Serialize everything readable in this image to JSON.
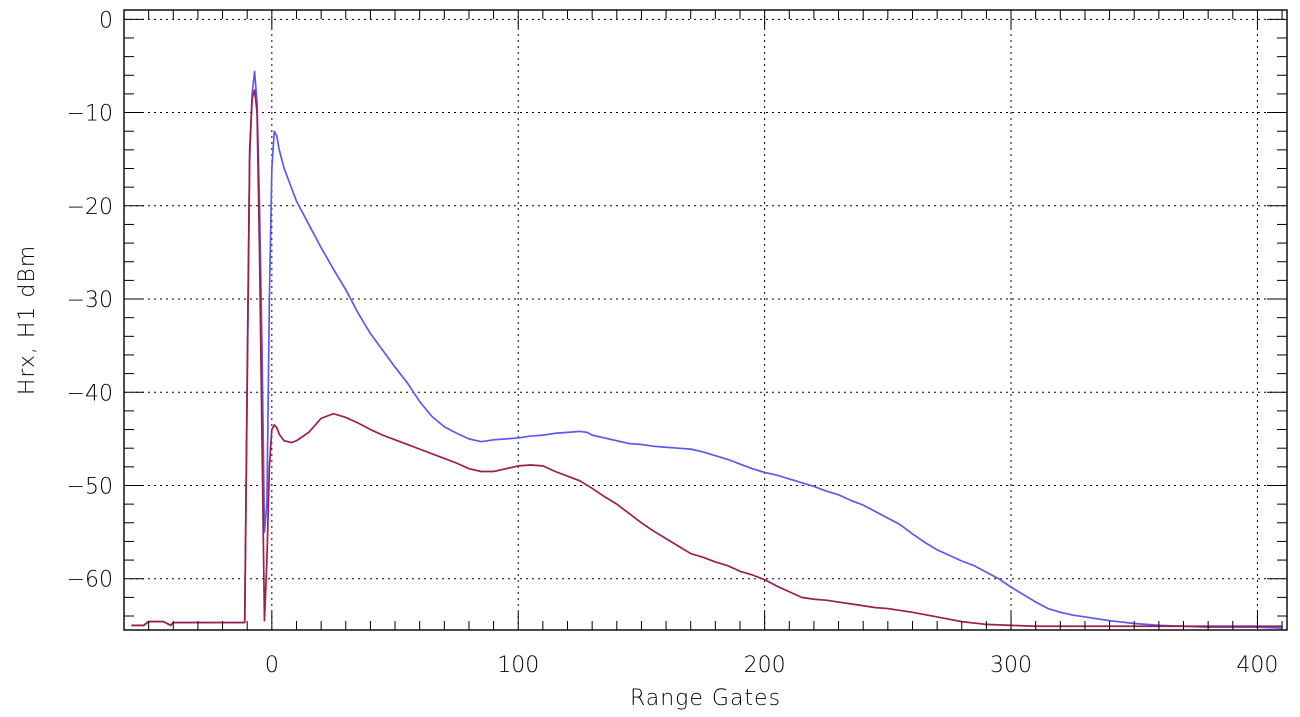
{
  "chart_data": {
    "type": "line",
    "title": "",
    "xlabel": "Range Gates",
    "ylabel": "Hrx, H1 dBm",
    "xlim": [
      -60,
      412
    ],
    "ylim": [
      -65.5,
      1
    ],
    "xticks": [
      0,
      100,
      200,
      300,
      400
    ],
    "xtick_labels": [
      "0",
      "100",
      "200",
      "300",
      "400"
    ],
    "yticks": [
      0,
      -10,
      -20,
      -30,
      -40,
      -50,
      -60
    ],
    "ytick_labels": [
      "0",
      "−10",
      "−20",
      "−30",
      "−40",
      "−50",
      "−60"
    ],
    "x_minor_step": 10,
    "y_minor_step": 2,
    "grid": true,
    "legend": "none",
    "series": [
      {
        "color": "#5a5aee",
        "x": [
          -57,
          -52,
          -50,
          -47,
          -44,
          -41,
          -40,
          -30,
          -20,
          -11,
          -10,
          -9,
          -8,
          -7,
          -6,
          -5,
          -4,
          -3,
          -2,
          -1,
          0,
          1,
          2,
          3,
          5,
          10,
          15,
          20,
          25,
          30,
          35,
          40,
          45,
          50,
          55,
          60,
          65,
          70,
          75,
          80,
          85,
          90,
          95,
          100,
          105,
          110,
          115,
          120,
          125,
          128,
          130,
          135,
          140,
          145,
          150,
          155,
          160,
          165,
          170,
          175,
          180,
          185,
          190,
          195,
          200,
          205,
          210,
          215,
          220,
          225,
          230,
          235,
          240,
          245,
          250,
          255,
          260,
          265,
          270,
          275,
          280,
          285,
          290,
          295,
          300,
          305,
          310,
          315,
          320,
          325,
          330,
          340,
          350,
          360,
          370,
          380,
          390,
          400,
          410
        ],
        "y": [
          -65,
          -65,
          -64.6,
          -64.6,
          -64.6,
          -65,
          -64.7,
          -64.7,
          -64.7,
          -64.7,
          -40,
          -15,
          -8,
          -5.6,
          -9,
          -20,
          -35,
          -55,
          -52,
          -30,
          -16,
          -12,
          -12.5,
          -14,
          -16,
          -19.5,
          -22,
          -24.5,
          -26.8,
          -29,
          -31.5,
          -33.7,
          -35.5,
          -37.3,
          -39,
          -41,
          -42.6,
          -43.7,
          -44.4,
          -45,
          -45.3,
          -45.1,
          -45,
          -44.9,
          -44.7,
          -44.6,
          -44.4,
          -44.3,
          -44.2,
          -44.3,
          -44.6,
          -44.9,
          -45.2,
          -45.5,
          -45.6,
          -45.8,
          -45.9,
          -46,
          -46.1,
          -46.4,
          -46.8,
          -47.2,
          -47.7,
          -48.2,
          -48.6,
          -48.9,
          -49.3,
          -49.7,
          -50.1,
          -50.6,
          -51,
          -51.6,
          -52.1,
          -52.8,
          -53.5,
          -54.2,
          -55.2,
          -56.1,
          -56.9,
          -57.5,
          -58.1,
          -58.6,
          -59.3,
          -60,
          -60.9,
          -61.7,
          -62.5,
          -63.2,
          -63.6,
          -63.9,
          -64.1,
          -64.5,
          -64.8,
          -65,
          -65.1,
          -65.2,
          -65.2,
          -65.2,
          -65.3
        ]
      },
      {
        "color": "#9e1f45",
        "x": [
          -57,
          -52,
          -50,
          -47,
          -44,
          -41,
          -40,
          -30,
          -20,
          -11,
          -10,
          -9,
          -8,
          -7,
          -6,
          -5,
          -4,
          -3,
          -2,
          -1,
          0,
          1,
          2,
          3,
          5,
          8,
          10,
          15,
          20,
          25,
          30,
          35,
          40,
          45,
          50,
          55,
          60,
          65,
          70,
          75,
          80,
          85,
          90,
          95,
          100,
          105,
          110,
          115,
          120,
          125,
          130,
          135,
          140,
          145,
          150,
          155,
          160,
          165,
          170,
          175,
          180,
          185,
          190,
          195,
          200,
          205,
          210,
          215,
          220,
          225,
          230,
          235,
          240,
          245,
          250,
          255,
          260,
          270,
          280,
          290,
          300,
          310,
          320,
          340,
          360,
          380,
          400,
          410
        ],
        "y": [
          -65,
          -65,
          -64.6,
          -64.6,
          -64.6,
          -65,
          -64.7,
          -64.7,
          -64.7,
          -64.7,
          -38,
          -14,
          -8.5,
          -7.6,
          -10,
          -25,
          -45,
          -64.5,
          -58,
          -48,
          -44,
          -43.5,
          -43.8,
          -44.5,
          -45.2,
          -45.4,
          -45.2,
          -44.3,
          -42.8,
          -42.3,
          -42.7,
          -43.3,
          -44,
          -44.6,
          -45.1,
          -45.6,
          -46.1,
          -46.6,
          -47.1,
          -47.6,
          -48.2,
          -48.5,
          -48.5,
          -48.2,
          -47.9,
          -47.8,
          -47.9,
          -48.5,
          -49,
          -49.5,
          -50.3,
          -51.2,
          -52,
          -53,
          -54,
          -54.9,
          -55.7,
          -56.5,
          -57.3,
          -57.7,
          -58.2,
          -58.6,
          -59.2,
          -59.6,
          -60.1,
          -60.8,
          -61.4,
          -62,
          -62.2,
          -62.3,
          -62.5,
          -62.7,
          -62.9,
          -63.1,
          -63.2,
          -63.4,
          -63.6,
          -64.1,
          -64.6,
          -64.9,
          -65,
          -65.1,
          -65.1,
          -65.1,
          -65.1,
          -65.1,
          -65.1,
          -65.1
        ]
      }
    ]
  }
}
